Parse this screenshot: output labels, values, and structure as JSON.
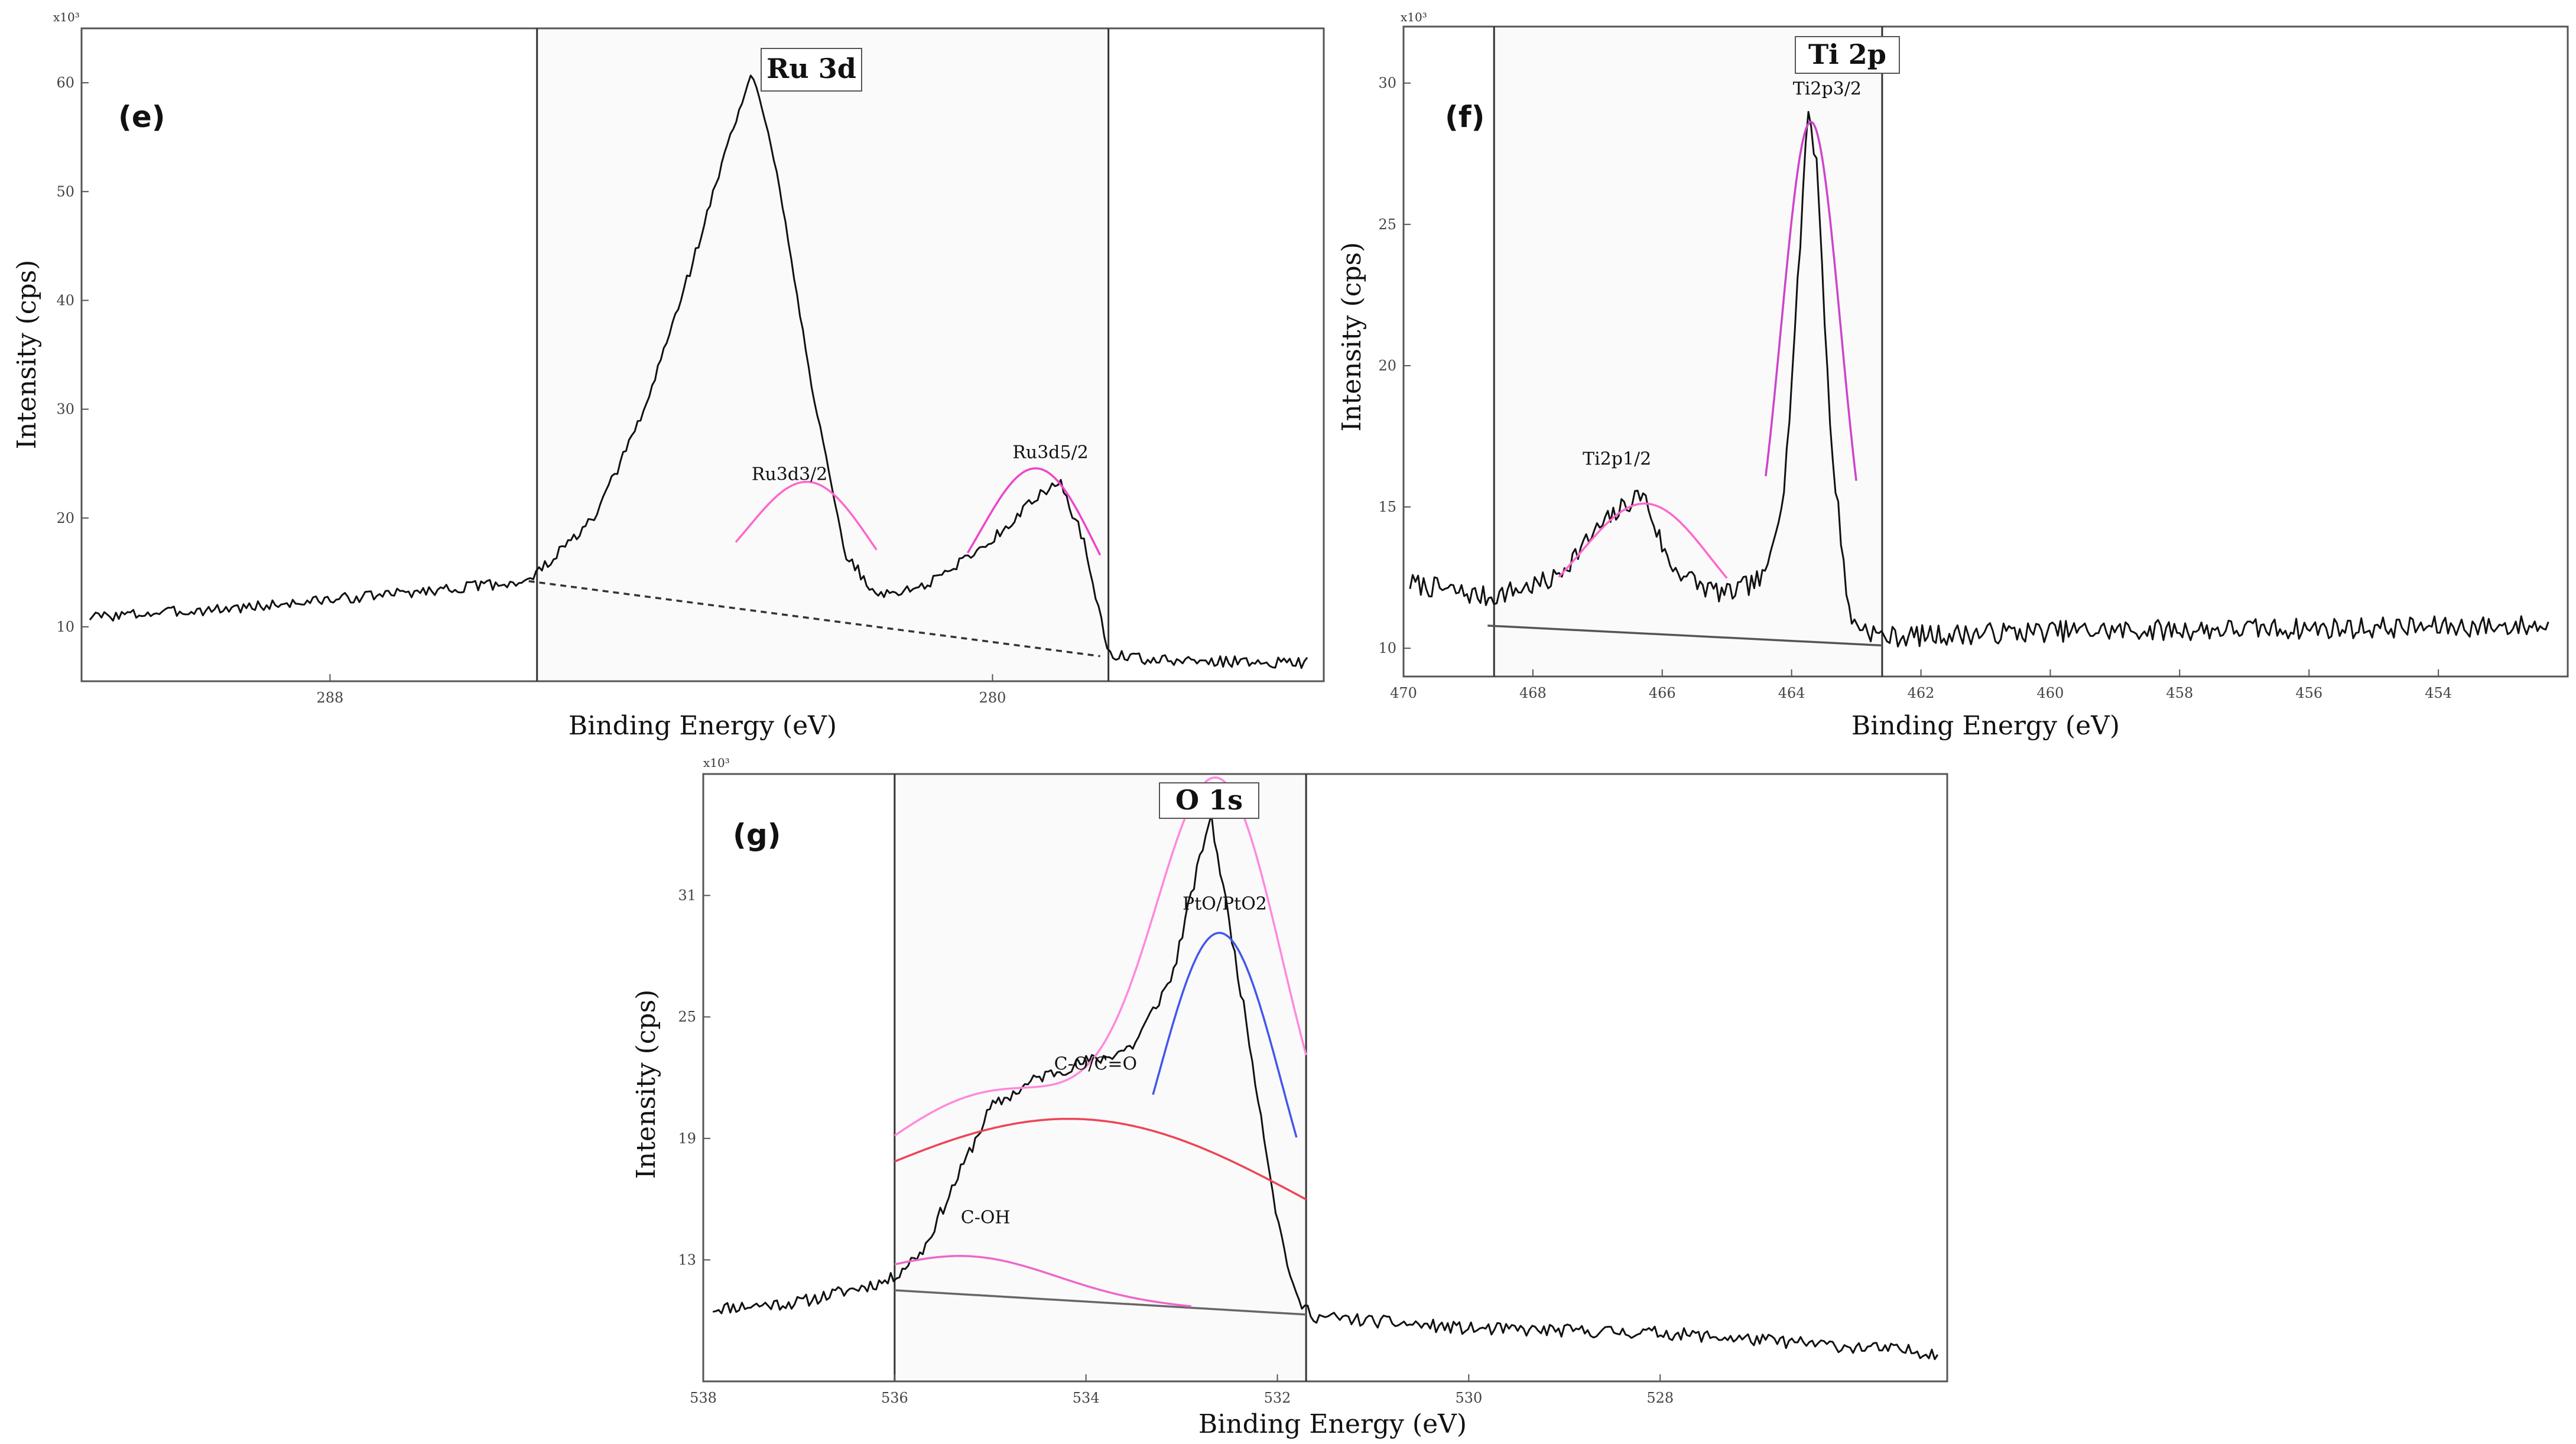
{
  "chart_data": [
    {
      "type": "line",
      "panel": "(e)",
      "title": "Ru 3d",
      "xlabel": "Binding Energy (eV)",
      "ylabel": "Intensity (cps)",
      "y_exponent": "x10³",
      "x_reversed": true,
      "xlim": [
        291,
        276
      ],
      "ylim": [
        5,
        65
      ],
      "x_ticks": [
        {
          "value": 288,
          "label": "288"
        },
        {
          "value": 280,
          "label": "280"
        }
      ],
      "y_ticks": [
        {
          "value": 10,
          "label": "10"
        },
        {
          "value": 20,
          "label": "20"
        },
        {
          "value": 30,
          "label": "30"
        },
        {
          "value": 40,
          "label": "40"
        },
        {
          "value": 50,
          "label": "50"
        },
        {
          "value": 60,
          "label": "60"
        }
      ],
      "fit_region": [
        285.5,
        278.6
      ],
      "series": [
        {
          "name": "Measured",
          "color": "#111111",
          "style": "line",
          "kind": "data",
          "noise": 0.5,
          "seed": 3,
          "anchors": [
            [
              290.9,
              10.9
            ],
            [
              289.0,
              11.8
            ],
            [
              287.0,
              13.2
            ],
            [
              285.6,
              14.2
            ],
            [
              284.8,
              20.0
            ],
            [
              284.2,
              30.0
            ],
            [
              283.6,
              44.0
            ],
            [
              283.15,
              55.5
            ],
            [
              282.9,
              60.8
            ],
            [
              282.6,
              52.0
            ],
            [
              282.2,
              33.0
            ],
            [
              281.8,
              17.0
            ],
            [
              281.4,
              12.8
            ],
            [
              280.8,
              13.8
            ],
            [
              280.0,
              18.0
            ],
            [
              279.6,
              21.0
            ],
            [
              279.2,
              23.5
            ],
            [
              278.9,
              18.0
            ],
            [
              278.6,
              7.5
            ],
            [
              278.0,
              6.9
            ],
            [
              276.2,
              6.7
            ]
          ]
        },
        {
          "name": "Baseline",
          "color": "#333333",
          "style": "dashed",
          "kind": "linear",
          "x": [
            285.6,
            278.7
          ],
          "y": [
            14.2,
            7.3
          ]
        },
        {
          "name": "Ru3d3/2",
          "color": "#ff66cc",
          "style": "line",
          "kind": "gauss",
          "center": 282.2,
          "fwhm": 0.75,
          "height": 12.5,
          "range": [
            283.1,
            281.4
          ]
        },
        {
          "name": "Ru3d5/2",
          "color": "#ee44cc",
          "style": "line",
          "kind": "gauss",
          "center": 279.45,
          "fwhm": 0.7,
          "height": 16.5,
          "range": [
            280.3,
            278.7
          ]
        }
      ],
      "annotations": [
        {
          "text": "Ru3d3/2",
          "x": 282.45,
          "y": 23.5
        },
        {
          "text": "Ru3d5/2",
          "x": 279.3,
          "y": 25.5
        }
      ]
    },
    {
      "type": "line",
      "panel": "(f)",
      "title": "Ti 2p",
      "xlabel": "Binding Energy (eV)",
      "ylabel": "Intensity (cps)",
      "y_exponent": "x10³",
      "x_reversed": true,
      "xlim": [
        470,
        452
      ],
      "ylim": [
        9,
        32
      ],
      "x_ticks": [
        {
          "value": 470,
          "label": "470"
        },
        {
          "value": 468,
          "label": "468"
        },
        {
          "value": 466,
          "label": "466"
        },
        {
          "value": 464,
          "label": "464"
        },
        {
          "value": 462,
          "label": "462"
        },
        {
          "value": 460,
          "label": "460"
        },
        {
          "value": 458,
          "label": "458"
        },
        {
          "value": 456,
          "label": "456"
        },
        {
          "value": 454,
          "label": "454"
        }
      ],
      "y_ticks": [
        {
          "value": 10,
          "label": "10"
        },
        {
          "value": 15,
          "label": "15"
        },
        {
          "value": 20,
          "label": "20"
        },
        {
          "value": 25,
          "label": "25"
        },
        {
          "value": 30,
          "label": "30"
        }
      ],
      "fit_region": [
        468.6,
        462.6
      ],
      "series": [
        {
          "name": "Measured",
          "color": "#111111",
          "style": "line",
          "kind": "data",
          "noise": 0.38,
          "seed": 7,
          "anchors": [
            [
              469.9,
              12.3
            ],
            [
              468.7,
              11.8
            ],
            [
              467.7,
              12.4
            ],
            [
              467.0,
              14.2
            ],
            [
              466.5,
              15.2
            ],
            [
              466.3,
              15.5
            ],
            [
              465.9,
              13.0
            ],
            [
              465.4,
              12.2
            ],
            [
              465.0,
              11.9
            ],
            [
              464.4,
              12.5
            ],
            [
              464.1,
              16.0
            ],
            [
              463.9,
              23.0
            ],
            [
              463.75,
              29.2
            ],
            [
              463.6,
              27.0
            ],
            [
              463.4,
              17.5
            ],
            [
              463.1,
              11.0
            ],
            [
              462.6,
              10.4
            ],
            [
              460.0,
              10.6
            ],
            [
              456.0,
              10.7
            ],
            [
              452.3,
              10.8
            ]
          ]
        },
        {
          "name": "Baseline",
          "color": "#555555",
          "style": "line",
          "kind": "linear",
          "x": [
            468.7,
            462.6
          ],
          "y": [
            10.8,
            10.1
          ]
        },
        {
          "name": "Ti2p1/2",
          "color": "#ff66cc",
          "style": "line",
          "kind": "gauss",
          "center": 466.25,
          "fwhm": 1.0,
          "height": 4.6,
          "range": [
            467.6,
            465.0
          ]
        },
        {
          "name": "Ti2p3/2",
          "color": "#cc44cc",
          "style": "line",
          "kind": "gauss",
          "center": 463.7,
          "fwhm": 0.46,
          "height": 18.4,
          "range": [
            464.4,
            463.0
          ]
        }
      ],
      "annotations": [
        {
          "text": "Ti2p1/2",
          "x": 466.7,
          "y": 16.5
        },
        {
          "text": "Ti2p3/2",
          "x": 463.45,
          "y": 29.6
        }
      ]
    },
    {
      "type": "line",
      "panel": "(g)",
      "title": "O 1s",
      "xlabel": "Binding Energy (eV)",
      "ylabel": "Intensity (cps)",
      "y_exponent": "x10³",
      "x_reversed": true,
      "xlim": [
        538,
        525
      ],
      "ylim": [
        7,
        37
      ],
      "x_ticks": [
        {
          "value": 538,
          "label": "538"
        },
        {
          "value": 536,
          "label": "536"
        },
        {
          "value": 534,
          "label": "534"
        },
        {
          "value": 532,
          "label": "532"
        },
        {
          "value": 530,
          "label": "530"
        },
        {
          "value": 528,
          "label": "528"
        }
      ],
      "y_ticks": [
        {
          "value": 13,
          "label": "13"
        },
        {
          "value": 19,
          "label": "19"
        },
        {
          "value": 25,
          "label": "25"
        },
        {
          "value": 31,
          "label": "31"
        }
      ],
      "fit_region": [
        536,
        531.7
      ],
      "series": [
        {
          "name": "Measured",
          "color": "#111111",
          "style": "line",
          "kind": "data",
          "noise": 0.32,
          "seed": 11,
          "anchors": [
            [
              537.9,
              10.6
            ],
            [
              537.0,
              10.9
            ],
            [
              536.05,
              12.0
            ],
            [
              535.7,
              13.5
            ],
            [
              535.3,
              17.5
            ],
            [
              535.0,
              20.5
            ],
            [
              534.5,
              22.0
            ],
            [
              534.0,
              22.8
            ],
            [
              533.8,
              23.0
            ],
            [
              533.5,
              23.6
            ],
            [
              533.1,
              27.0
            ],
            [
              532.8,
              33.0
            ],
            [
              532.7,
              35.0
            ],
            [
              532.55,
              31.0
            ],
            [
              532.3,
              24.0
            ],
            [
              532.0,
              15.0
            ],
            [
              531.8,
              11.0
            ],
            [
              531.6,
              10.2
            ],
            [
              530.0,
              9.6
            ],
            [
              528.0,
              9.4
            ],
            [
              525.1,
              8.4
            ]
          ]
        },
        {
          "name": "Baseline",
          "color": "#666666",
          "style": "line",
          "kind": "linear",
          "x": [
            536.0,
            531.7
          ],
          "y": [
            11.5,
            10.3
          ]
        },
        {
          "name": "C-OH",
          "color": "#ee66cc",
          "style": "line",
          "kind": "gauss",
          "center": 535.2,
          "fwhm": 0.9,
          "height": 1.9,
          "range": [
            536.0,
            532.9
          ]
        },
        {
          "name": "C-O/C=O",
          "color": "#ee4455",
          "style": "line",
          "kind": "gauss",
          "center": 534.0,
          "fwhm": 2.4,
          "height": 9.0,
          "range": [
            536.0,
            531.7
          ]
        },
        {
          "name": "PtO/PtO2",
          "color": "#4455ee",
          "style": "line",
          "kind": "gauss",
          "center": 532.6,
          "fwhm": 0.65,
          "height": 18.6,
          "range": [
            533.3,
            531.8
          ]
        },
        {
          "name": "Envelope",
          "color": "#ff88dd",
          "style": "line",
          "kind": "sum",
          "components": [
            "C-OH",
            "C-O/C=O",
            "PtO/PtO2"
          ],
          "range": [
            536.0,
            531.7
          ]
        }
      ],
      "annotations": [
        {
          "text": "C-OH",
          "x": 535.05,
          "y": 14.8
        },
        {
          "text": "C-O/C=O",
          "x": 533.9,
          "y": 22.4
        },
        {
          "text": "PtO/PtO2",
          "x": 532.55,
          "y": 30.3
        }
      ]
    }
  ]
}
